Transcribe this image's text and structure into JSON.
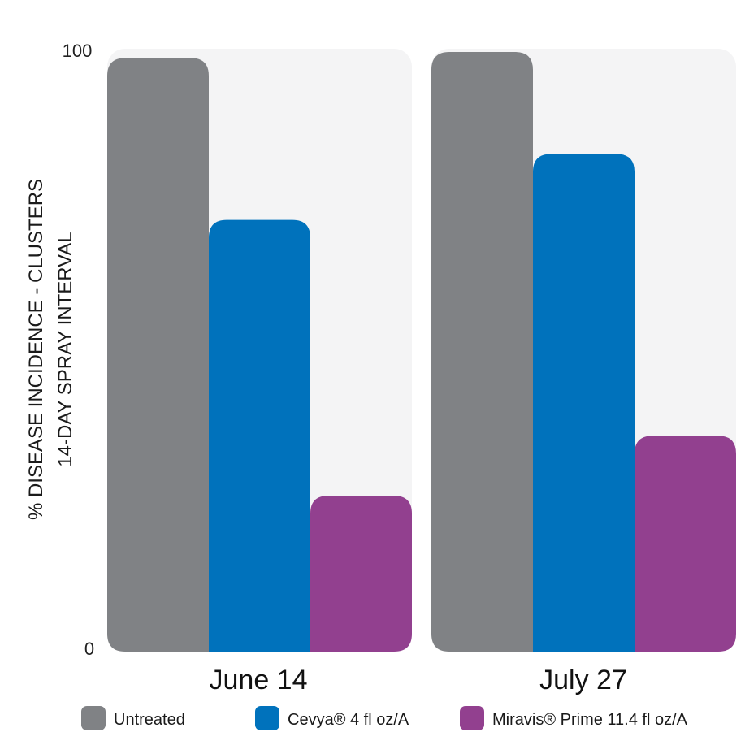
{
  "chart_data": {
    "type": "bar",
    "ylabel_lines": [
      "% DISEASE INCIDENCE - CLUSTERS",
      "14-DAY SPRAY INTERVAL"
    ],
    "ylim": [
      0,
      100
    ],
    "yticks": [
      "100",
      "0"
    ],
    "categories": [
      "June 14",
      "July 27"
    ],
    "series": [
      {
        "name": "Untreated",
        "color": "#808285",
        "values": [
          99,
          100
        ]
      },
      {
        "name": "Cevya® 4 fl oz/A",
        "color": "#0072BC",
        "values": [
          72,
          83
        ]
      },
      {
        "name": "Miravis® Prime 11.4 fl oz/A",
        "color": "#92408F",
        "values": [
          26,
          36
        ]
      }
    ],
    "legend_position": "bottom",
    "panel_background": "#F4F4F5"
  }
}
